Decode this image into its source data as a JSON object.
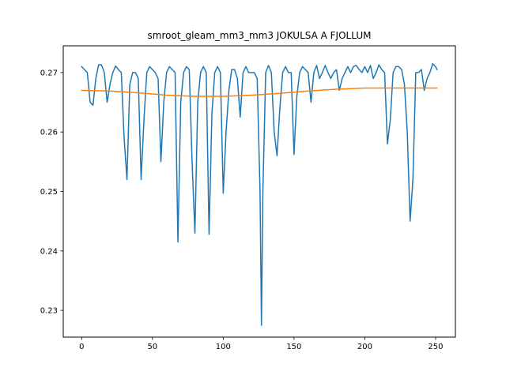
{
  "chart_data": {
    "type": "line",
    "title": "smroot_gleam_mm3_mm3 JOKULSA A FJOLLUM",
    "xlabel": "",
    "ylabel": "",
    "xlim": [
      -13,
      264
    ],
    "ylim": [
      0.2255,
      0.2745
    ],
    "xticks": [
      0,
      50,
      100,
      150,
      200,
      250
    ],
    "yticks": [
      0.23,
      0.24,
      0.25,
      0.26,
      0.27
    ],
    "ytick_labels": [
      "0.23",
      "0.24",
      "0.25",
      "0.26",
      "0.27"
    ],
    "grid": false,
    "legend": "none",
    "series": [
      {
        "color": "#1f77b4",
        "x": [
          0,
          2,
          4,
          6,
          8,
          10,
          12,
          14,
          16,
          18,
          20,
          22,
          24,
          26,
          28,
          30,
          32,
          34,
          36,
          38,
          40,
          42,
          44,
          46,
          48,
          50,
          52,
          54,
          56,
          58,
          60,
          62,
          64,
          66,
          68,
          70,
          72,
          74,
          76,
          78,
          80,
          82,
          84,
          86,
          88,
          90,
          92,
          94,
          96,
          98,
          100,
          102,
          104,
          106,
          108,
          110,
          112,
          114,
          116,
          118,
          120,
          122,
          124,
          126,
          127,
          128,
          130,
          132,
          134,
          136,
          138,
          140,
          142,
          144,
          146,
          148,
          150,
          152,
          154,
          156,
          158,
          160,
          162,
          164,
          166,
          168,
          170,
          172,
          174,
          176,
          178,
          180,
          182,
          184,
          186,
          188,
          190,
          192,
          194,
          196,
          198,
          200,
          202,
          204,
          206,
          208,
          210,
          212,
          214,
          216,
          218,
          220,
          222,
          224,
          226,
          228,
          230,
          232,
          234,
          236,
          238,
          240,
          242,
          244,
          246,
          248,
          250,
          251
        ],
        "values": [
          0.271,
          0.2705,
          0.27,
          0.265,
          0.2645,
          0.269,
          0.2713,
          0.2713,
          0.27,
          0.265,
          0.268,
          0.27,
          0.2711,
          0.2705,
          0.27,
          0.259,
          0.252,
          0.268,
          0.27,
          0.27,
          0.269,
          0.252,
          0.262,
          0.27,
          0.271,
          0.2705,
          0.27,
          0.269,
          0.255,
          0.265,
          0.27,
          0.271,
          0.2705,
          0.27,
          0.2415,
          0.265,
          0.27,
          0.271,
          0.2705,
          0.255,
          0.243,
          0.265,
          0.27,
          0.271,
          0.27,
          0.2428,
          0.263,
          0.27,
          0.271,
          0.27,
          0.2497,
          0.26,
          0.267,
          0.2705,
          0.2705,
          0.269,
          0.2625,
          0.27,
          0.271,
          0.27,
          0.27,
          0.27,
          0.269,
          0.25,
          0.2275,
          0.25,
          0.27,
          0.2712,
          0.27,
          0.26,
          0.256,
          0.264,
          0.27,
          0.271,
          0.27,
          0.27,
          0.2562,
          0.266,
          0.27,
          0.271,
          0.2705,
          0.27,
          0.265,
          0.27,
          0.2712,
          0.269,
          0.27,
          0.2712,
          0.27,
          0.269,
          0.27,
          0.2705,
          0.267,
          0.269,
          0.27,
          0.271,
          0.27,
          0.271,
          0.2712,
          0.2705,
          0.27,
          0.271,
          0.27,
          0.2712,
          0.269,
          0.27,
          0.2713,
          0.2705,
          0.27,
          0.258,
          0.262,
          0.27,
          0.271,
          0.271,
          0.2705,
          0.268,
          0.26,
          0.245,
          0.252,
          0.27,
          0.27,
          0.2705,
          0.267,
          0.269,
          0.27,
          0.2715,
          0.271,
          0.2705
        ]
      },
      {
        "color": "#ff7f0e",
        "x": [
          0,
          20,
          40,
          60,
          80,
          100,
          120,
          140,
          160,
          180,
          200,
          220,
          240,
          251
        ],
        "values": [
          0.267,
          0.2669,
          0.2666,
          0.2662,
          0.266,
          0.266,
          0.2662,
          0.2665,
          0.2669,
          0.2672,
          0.2674,
          0.2674,
          0.2674,
          0.2674
        ]
      }
    ]
  }
}
